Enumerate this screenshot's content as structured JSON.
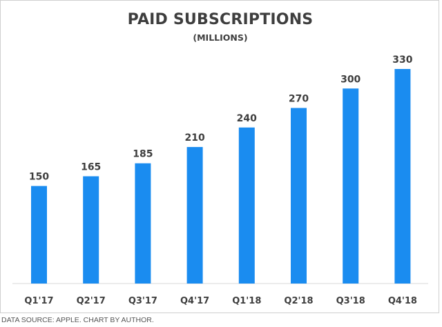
{
  "chart_data": {
    "type": "bar",
    "title": "PAID SUBSCRIPTIONS",
    "subtitle": "(MILLIONS)",
    "categories": [
      "Q1'17",
      "Q2'17",
      "Q3'17",
      "Q4'17",
      "Q1'18",
      "Q2'18",
      "Q3'18",
      "Q4'18"
    ],
    "values": [
      150,
      165,
      185,
      210,
      240,
      270,
      300,
      330
    ],
    "data_labels": [
      "150",
      "165",
      "185",
      "210",
      "240",
      "270",
      "300",
      "330"
    ],
    "xlabel": "",
    "ylabel": "",
    "ylim": [
      0,
      330
    ],
    "grid": false,
    "legend": "none",
    "bar_color": "#1a8cf0"
  },
  "footer": {
    "source": "DATA SOURCE: APPLE. CHART BY AUTHOR."
  }
}
